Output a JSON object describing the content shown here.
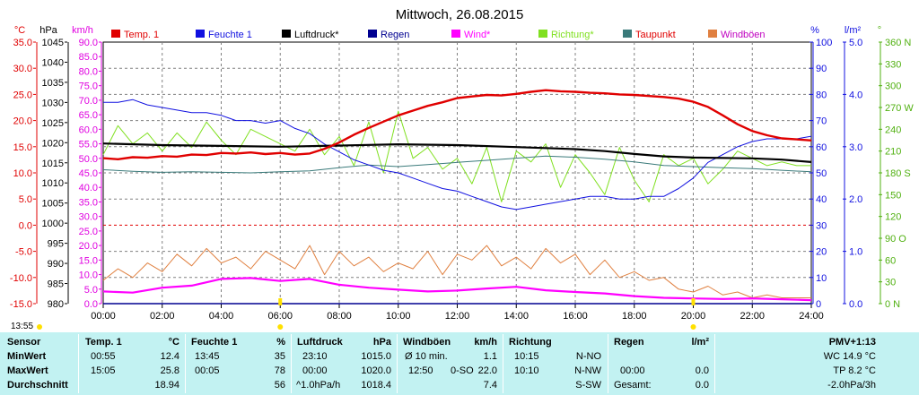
{
  "title": "Mittwoch, 26.08.2015",
  "units": {
    "temp": "°C",
    "pressure": "hPa",
    "wind": "km/h",
    "humidity": "%",
    "rain": "l/m²",
    "direction": "°"
  },
  "legend": [
    {
      "label": "Temp. 1",
      "color": "#e00000",
      "text_color": "#e00000"
    },
    {
      "label": "Feuchte 1",
      "color": "#1010e0",
      "text_color": "#1010e0"
    },
    {
      "label": "Luftdruck*",
      "color": "#000000",
      "text_color": "#000000"
    },
    {
      "label": "Regen",
      "color": "#000090",
      "text_color": "#000090"
    },
    {
      "label": "Wind*",
      "color": "#ff00ff",
      "text_color": "#ff00ff"
    },
    {
      "label": "Richtung*",
      "color": "#80e020",
      "text_color": "#80e020"
    },
    {
      "label": "Taupunkt",
      "color": "#3a7a7a",
      "text_color": "#e00000"
    },
    {
      "label": "Windböen",
      "color": "#e08040",
      "text_color": "#c000c0"
    }
  ],
  "axis_labels": {
    "temp": [
      "35.0",
      "30.0",
      "25.0",
      "20.0",
      "15.0",
      "10.0",
      "5.0",
      "0.0",
      "-5.0",
      "-10.0",
      "-15.0"
    ],
    "pressure": [
      "1045",
      "1040",
      "1035",
      "1030",
      "1025",
      "1020",
      "1015",
      "1010",
      "1005",
      "1000",
      "995",
      "990",
      "985",
      "980"
    ],
    "wind": [
      "90.0",
      "85.0",
      "80.0",
      "75.0",
      "70.0",
      "65.0",
      "60.0",
      "55.0",
      "50.0",
      "45.0",
      "40.0",
      "35.0",
      "30.0",
      "25.0",
      "20.0",
      "15.0",
      "10.0",
      "5.0",
      "0.0"
    ],
    "humidity": [
      "100",
      "90",
      "80",
      "70",
      "60",
      "50",
      "40",
      "30",
      "20",
      "10",
      "0"
    ],
    "rain": [
      "5.0",
      "4.0",
      "3.0",
      "2.0",
      "1.0",
      "0.0"
    ],
    "direction": [
      "360 N",
      "330",
      "300",
      "270 W",
      "240",
      "210",
      "180 S",
      "150",
      "120",
      "90 O",
      "60",
      "30",
      "0 N"
    ],
    "time": [
      "00:00",
      "02:00",
      "04:00",
      "06:00",
      "08:00",
      "10:00",
      "12:00",
      "14:00",
      "16:00",
      "18:00",
      "20:00",
      "22:00",
      "24:00"
    ]
  },
  "sunrise_label": "13:55",
  "colors": {
    "temp_axis": "#e00000",
    "pressure_axis": "#000000",
    "wind_axis": "#e000e0",
    "humidity_axis": "#1010e0",
    "rain_axis": "#1010e0",
    "direction_axis": "#50b010",
    "grid": "#808080",
    "zero_line": "#e00000",
    "marker": "#ffe000",
    "table_bg": "#c2f2f2"
  },
  "chart_data": {
    "type": "line",
    "title": "Mittwoch, 26.08.2015",
    "x_unit": "hours",
    "xlim": [
      0,
      24
    ],
    "series": [
      {
        "name": "Temp. 1",
        "axis": "temp",
        "ylim": [
          -15,
          35
        ],
        "x": [
          0,
          0.5,
          1,
          1.5,
          2,
          2.5,
          3,
          3.5,
          4,
          4.5,
          5,
          5.5,
          6,
          6.5,
          7,
          7.5,
          8,
          8.5,
          9,
          9.5,
          10,
          10.5,
          11,
          11.5,
          12,
          12.5,
          13,
          13.5,
          14,
          14.5,
          15,
          15.5,
          16,
          16.5,
          17,
          17.5,
          18,
          18.5,
          19,
          19.5,
          20,
          20.5,
          21,
          21.5,
          22,
          22.5,
          23,
          23.5,
          24
        ],
        "y": [
          12.8,
          12.6,
          13.0,
          12.9,
          13.2,
          13.1,
          13.5,
          13.4,
          13.8,
          13.7,
          13.9,
          13.6,
          13.8,
          13.5,
          13.7,
          14.6,
          15.8,
          17.3,
          18.6,
          19.8,
          21.0,
          21.9,
          22.8,
          23.5,
          24.3,
          24.6,
          24.9,
          24.8,
          25.1,
          25.5,
          25.8,
          25.6,
          25.5,
          25.3,
          25.2,
          25.0,
          24.9,
          24.7,
          24.5,
          24.2,
          23.6,
          22.6,
          21.0,
          19.3,
          18.0,
          17.2,
          16.6,
          16.4,
          16.2
        ]
      },
      {
        "name": "Feuchte 1",
        "axis": "humidity",
        "ylim": [
          0,
          100
        ],
        "x": [
          0,
          0.5,
          1,
          1.5,
          2,
          2.5,
          3,
          3.5,
          4,
          4.5,
          5,
          5.5,
          6,
          6.5,
          7,
          7.5,
          8,
          8.5,
          9,
          9.5,
          10,
          10.5,
          11,
          11.5,
          12,
          12.5,
          13,
          13.5,
          14,
          14.5,
          15,
          15.5,
          16,
          16.5,
          17,
          17.5,
          18,
          18.5,
          19,
          19.5,
          20,
          20.5,
          21,
          21.5,
          22,
          22.5,
          23,
          23.5,
          24
        ],
        "y": [
          77,
          77,
          78,
          76,
          75,
          74,
          73,
          73,
          72,
          70,
          70,
          69,
          70,
          67,
          65,
          61,
          58,
          55,
          53,
          51,
          50,
          48,
          46,
          44,
          43,
          41,
          39,
          37,
          36,
          37,
          38,
          39,
          40,
          41,
          41,
          40,
          40,
          41,
          41,
          44,
          48,
          54,
          57,
          60,
          62,
          63,
          63,
          63,
          64
        ]
      },
      {
        "name": "Luftdruck*",
        "axis": "pressure",
        "ylim": [
          980,
          1045
        ],
        "x": [
          0,
          2,
          4,
          6,
          8,
          10,
          12,
          14,
          16,
          17,
          18,
          19,
          20,
          22,
          23,
          24
        ],
        "y": [
          1019.8,
          1019.4,
          1019.2,
          1019.0,
          1019.3,
          1019.6,
          1019.4,
          1018.9,
          1018.4,
          1017.9,
          1017.2,
          1016.6,
          1016.3,
          1016.1,
          1015.8,
          1015.2
        ]
      },
      {
        "name": "Taupunkt",
        "axis": "temp",
        "ylim": [
          -15,
          35
        ],
        "x": [
          0,
          1,
          2,
          3,
          4,
          5,
          6,
          7,
          8,
          9,
          10,
          11,
          12,
          13,
          14,
          15,
          16,
          17,
          18,
          19,
          20,
          21,
          22,
          23,
          24
        ],
        "y": [
          10.6,
          10.3,
          10.1,
          10.2,
          10.1,
          10.0,
          10.2,
          10.4,
          11.0,
          11.5,
          11.2,
          11.6,
          12.0,
          12.4,
          12.8,
          13.2,
          13.0,
          12.6,
          12.1,
          11.4,
          11.2,
          11.0,
          10.8,
          10.5,
          10.2
        ]
      },
      {
        "name": "Richtung*",
        "axis": "direction",
        "ylim": [
          0,
          360
        ],
        "x": [
          0,
          0.5,
          1,
          1.5,
          2,
          2.5,
          3,
          3.5,
          4,
          4.5,
          5,
          5.5,
          6,
          6.5,
          7,
          7.5,
          8,
          8.5,
          9,
          9.5,
          10,
          10.5,
          11,
          11.5,
          12,
          12.5,
          13,
          13.5,
          14,
          14.5,
          15,
          15.5,
          16,
          16.5,
          17,
          17.5,
          18,
          18.5,
          19,
          19.5,
          20,
          20.5,
          21,
          21.5,
          22,
          22.5,
          23,
          23.5,
          24
        ],
        "y": [
          205,
          245,
          220,
          235,
          210,
          235,
          215,
          250,
          225,
          205,
          240,
          230,
          220,
          210,
          240,
          205,
          230,
          190,
          250,
          180,
          265,
          200,
          215,
          185,
          200,
          165,
          215,
          140,
          210,
          195,
          220,
          160,
          205,
          180,
          150,
          215,
          170,
          140,
          205,
          190,
          200,
          165,
          185,
          210,
          200,
          190,
          195,
          190,
          190
        ]
      },
      {
        "name": "Wind*",
        "axis": "wind",
        "ylim": [
          0,
          90
        ],
        "x": [
          0,
          1,
          2,
          3,
          4,
          5,
          6,
          7,
          8,
          9,
          10,
          11,
          12,
          13,
          14,
          15,
          16,
          17,
          18,
          19,
          20,
          21,
          22,
          23,
          24
        ],
        "y": [
          4.2,
          3.8,
          5.5,
          6.2,
          8.5,
          8.8,
          7.8,
          8.5,
          6.5,
          5.5,
          4.8,
          4.2,
          4.5,
          5.2,
          5.8,
          4.6,
          4.0,
          3.5,
          2.6,
          2.0,
          1.8,
          1.6,
          1.8,
          1.5,
          1.2
        ]
      },
      {
        "name": "Windböen",
        "axis": "wind",
        "ylim": [
          0,
          90
        ],
        "x": [
          0,
          0.5,
          1,
          1.5,
          2,
          2.5,
          3,
          3.5,
          4,
          4.5,
          5,
          5.5,
          6,
          6.5,
          7,
          7.5,
          8,
          8.5,
          9,
          9.5,
          10,
          10.5,
          11,
          11.5,
          12,
          12.5,
          13,
          13.5,
          14,
          14.5,
          15,
          15.5,
          16,
          16.5,
          17,
          17.5,
          18,
          18.5,
          19,
          19.5,
          20,
          20.5,
          21,
          21.5,
          22,
          22.5,
          23,
          23.5,
          24
        ],
        "y": [
          8,
          12,
          9,
          14,
          11,
          17,
          13,
          19,
          14,
          16,
          12,
          18,
          15,
          12,
          20,
          10,
          18,
          13,
          16,
          11,
          14,
          12,
          18,
          10,
          17,
          15,
          20,
          13,
          16,
          12,
          19,
          14,
          17,
          10,
          15,
          9,
          11,
          8,
          9,
          5,
          4,
          6,
          3,
          4,
          2,
          3,
          2,
          2,
          2
        ]
      },
      {
        "name": "Regen",
        "axis": "rain",
        "ylim": [
          0,
          5
        ],
        "x": [
          0,
          24
        ],
        "y": [
          0.0,
          0.0
        ]
      }
    ]
  },
  "table": {
    "col_headers": [
      {
        "label": "Sensor",
        "unit": ""
      },
      {
        "label": "Temp. 1",
        "unit": "°C"
      },
      {
        "label": "Feuchte 1",
        "unit": "%"
      },
      {
        "label": "Luftdruck",
        "unit": "hPa"
      },
      {
        "label": "Windböen",
        "unit": "km/h"
      },
      {
        "label": "Richtung",
        "unit": ""
      },
      {
        "label": "Regen",
        "unit": "l/m²"
      },
      {
        "label": "PMV+1:13",
        "unit": ""
      }
    ],
    "row_labels": [
      "MinWert",
      "MaxWert",
      "Durchschnitt"
    ],
    "temp": {
      "min_time": "00:55",
      "min": "12.4",
      "max_time": "15:05",
      "max": "25.8",
      "avg": "18.94"
    },
    "humidity": {
      "min_time": "13:45",
      "min": "35",
      "max_time": "00:05",
      "max": "78",
      "avg": "56"
    },
    "pressure": {
      "min_time": "23:10",
      "min": "1015.0",
      "max_time": "00:00",
      "max": "1020.0",
      "trend": "^1.0hPa/h",
      "avg": "1018.4"
    },
    "gust": {
      "min_prefix": "Ø 10 min.",
      "min": "1.1",
      "max_time": "12:50",
      "max_dir": "0-SO",
      "max": "22.0",
      "avg": "7.4"
    },
    "direction": {
      "min_time": "10:15",
      "min": "N-NO",
      "max_time": "10:10",
      "max": "N-NW",
      "avg": "S-SW"
    },
    "rain": {
      "max_time": "00:00",
      "max": "0.0",
      "total_label": "Gesamt:",
      "total": "0.0"
    },
    "pmv": {
      "line1": "WC 14.9 °C",
      "line2": "TP 8.2 °C",
      "line3": "-2.0hPa/3h"
    }
  }
}
